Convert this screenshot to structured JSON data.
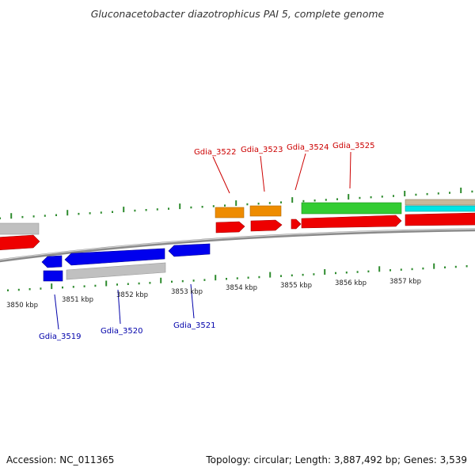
{
  "title": "Gluconacetobacter diazotrophicus PAI 5, complete genome",
  "scale_labels": [
    "3850 kbp",
    "3851 kbp",
    "3852 kbp",
    "3853 kbp",
    "3854 kbp",
    "3855 kbp",
    "3856 kbp",
    "3857 kbp"
  ],
  "genes_top": [
    "Gdia_3522",
    "Gdia_3523",
    "Gdia_3524",
    "Gdia_3525"
  ],
  "genes_bottom": [
    "Gdia_3519",
    "Gdia_3520",
    "Gdia_3521"
  ],
  "footer": {
    "accession": "Accession: NC_011365",
    "stats": "Topology: circular; Length: 3,887,492 bp; Genes: 3,539"
  },
  "colors": {
    "forward_label": "#cc0000",
    "reverse_label": "#0000aa",
    "tick": "#2e8b2e",
    "cds_red": "#ee0000",
    "cds_blue": "#0000ee",
    "gray": "#c0c0c0",
    "orange": "#ee8c00",
    "green": "#33cc33",
    "cyan": "#00e5e5",
    "tan": "#c8b89a"
  }
}
